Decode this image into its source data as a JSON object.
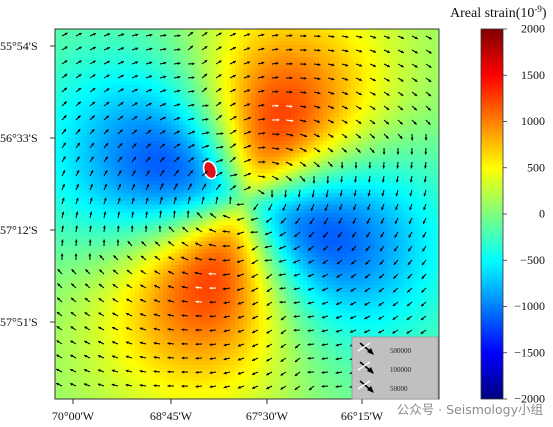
{
  "colorbar": {
    "title": "Areal strain(10",
    "title_exp": "-9",
    "title_close": ")",
    "ticks": [
      "2000",
      "1500",
      "1000",
      "500",
      "0",
      "−500",
      "−1000",
      "−1500",
      "−2000"
    ],
    "tick_values": [
      2000,
      1500,
      1000,
      500,
      0,
      -500,
      -1000,
      -1500,
      -2000
    ],
    "range": [
      -2000,
      2000
    ],
    "colormap": "jet",
    "colors": [
      "#00007f",
      "#0000ff",
      "#00ffff",
      "#7fff7f",
      "#ffff00",
      "#ff0000",
      "#7f0000"
    ]
  },
  "map": {
    "lat_labels": [
      "55°54'S",
      "56°33'S",
      "57°12'S",
      "57°51'S"
    ],
    "lon_labels": [
      "70°00'W",
      "68°45'W",
      "67°30'W",
      "66°15'W"
    ],
    "vector_color_on_field": "#000000",
    "vector_color_on_lobes": "#ffffff"
  },
  "legend": {
    "labels": [
      "500000",
      "100000",
      "50000"
    ],
    "background": "#c0c0c0"
  },
  "watermark": "公众号 · Seismology小组"
}
